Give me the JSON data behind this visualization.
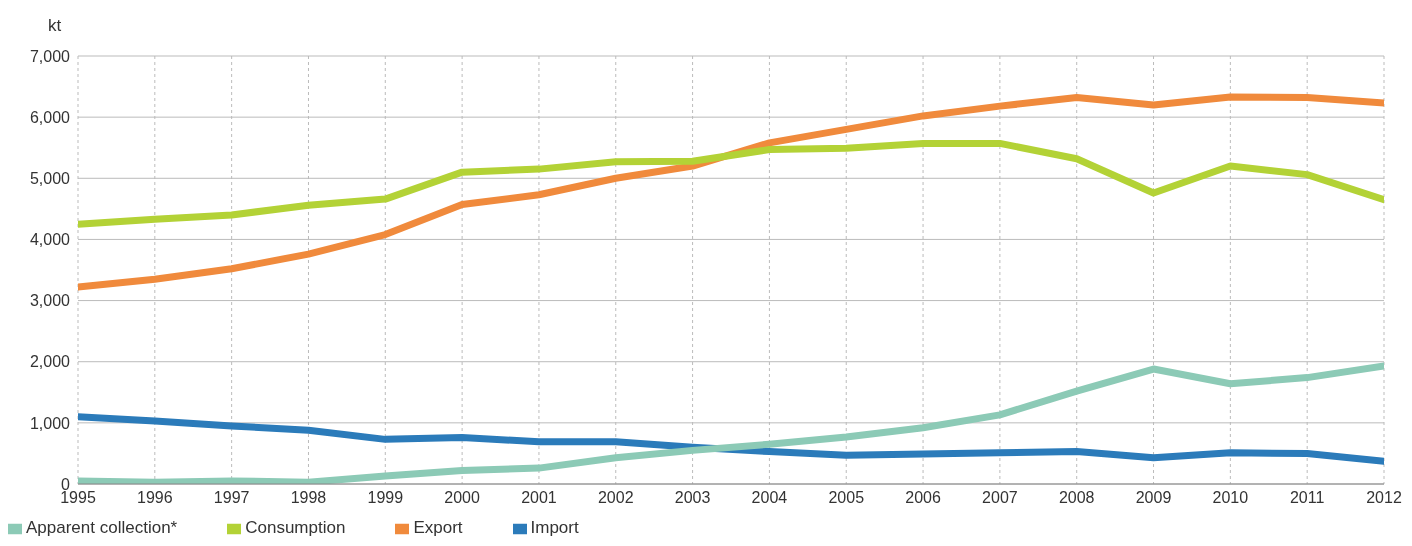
{
  "chart_data": {
    "type": "line",
    "ylabel": "kt",
    "categories": [
      "1995",
      "1996",
      "1997",
      "1998",
      "1999",
      "2000",
      "2001",
      "2002",
      "2003",
      "2004",
      "2005",
      "2006",
      "2007",
      "2008",
      "2009",
      "2010",
      "2011",
      "2012"
    ],
    "series": [
      {
        "name": "Import",
        "color": "#2b7bba",
        "values": [
          1100,
          1030,
          950,
          880,
          730,
          760,
          690,
          690,
          600,
          530,
          470,
          490,
          510,
          530,
          430,
          510,
          500,
          370
        ]
      },
      {
        "name": "Export",
        "color": "#f08a3c",
        "values": [
          3220,
          3350,
          3520,
          3760,
          4080,
          4570,
          4730,
          5000,
          5200,
          5580,
          5800,
          6020,
          6180,
          6320,
          6200,
          6330,
          6320,
          6230
        ]
      },
      {
        "name": "Consumption",
        "color": "#b3d236",
        "values": [
          4250,
          4330,
          4400,
          4560,
          4660,
          5100,
          5150,
          5270,
          5280,
          5470,
          5490,
          5570,
          5570,
          5320,
          4760,
          5200,
          5060,
          4650
        ]
      },
      {
        "name": "Apparent collection*",
        "color": "#8ccab6",
        "values": [
          50,
          30,
          50,
          30,
          130,
          220,
          260,
          430,
          550,
          650,
          770,
          920,
          1130,
          1520,
          1880,
          1640,
          1740,
          1930
        ]
      }
    ],
    "ylim": [
      0,
      7000
    ],
    "yticks": [
      {
        "value": 0,
        "label": "0"
      },
      {
        "value": 1000,
        "label": "1,000"
      },
      {
        "value": 2000,
        "label": "2,000"
      },
      {
        "value": 3000,
        "label": "3,000"
      },
      {
        "value": 4000,
        "label": "4,000"
      },
      {
        "value": 5000,
        "label": "5,000"
      },
      {
        "value": 6000,
        "label": "6,000"
      },
      {
        "value": 7000,
        "label": "7,000"
      }
    ],
    "grid": true,
    "legend": "bottom left",
    "marker": "none",
    "line_style": "solid"
  }
}
